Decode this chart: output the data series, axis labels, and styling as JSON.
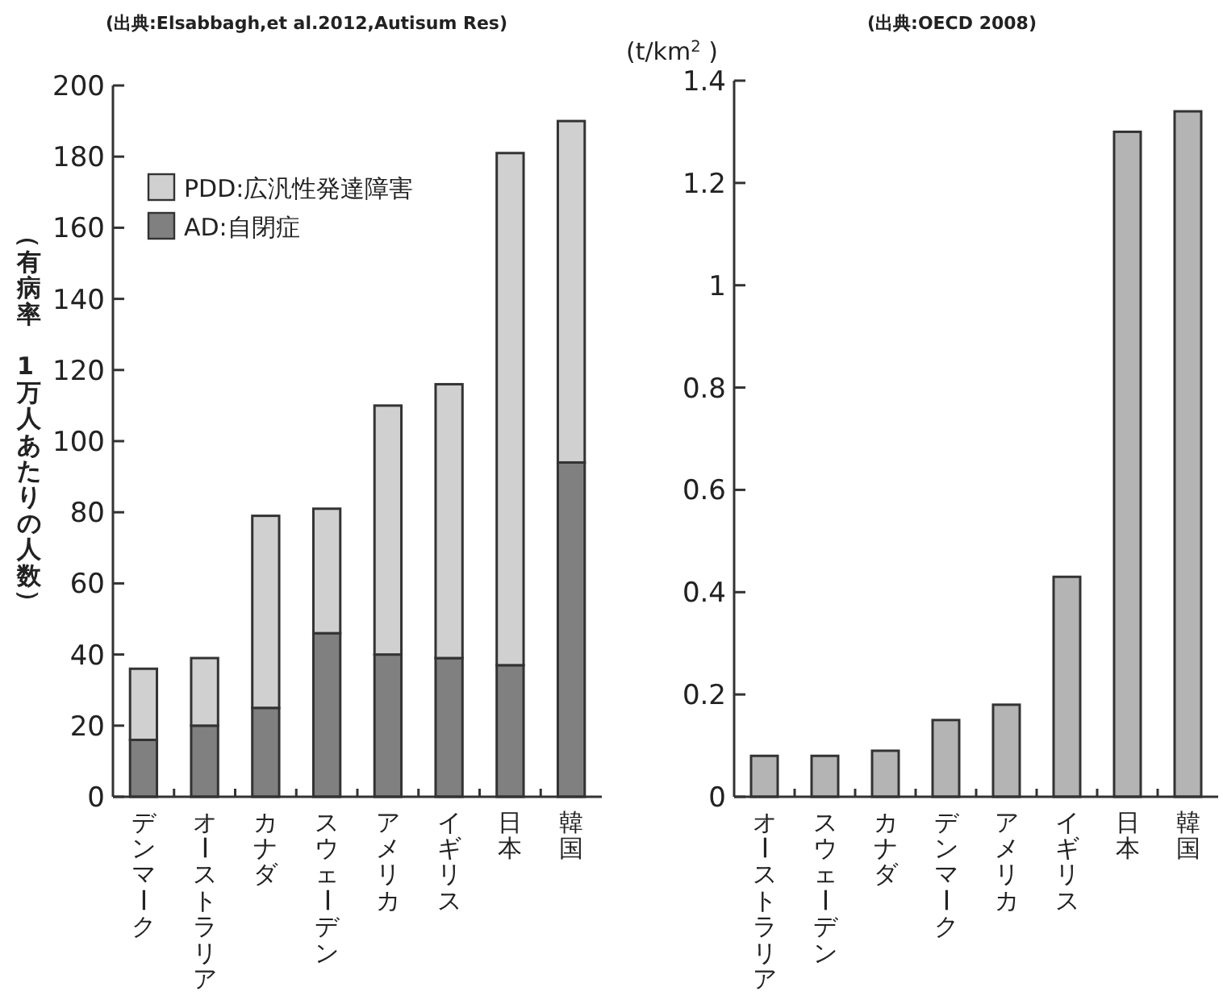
{
  "chart_data": [
    {
      "type": "bar",
      "title": "(出典:Elsabbagh,et al.2012,Autisum Res)",
      "ylabel": "（有病率　1万人あたりの人数）",
      "categories": [
        "デンマーク",
        "オーストラリア",
        "カナダ",
        "スウェーデン",
        "アメリカ",
        "イギリス",
        "日本",
        "韓国"
      ],
      "stacked": true,
      "legend": "top left",
      "ylim": [
        0,
        200
      ],
      "yticks": [
        0,
        20,
        40,
        60,
        80,
        100,
        120,
        140,
        160,
        180,
        200
      ],
      "series": [
        {
          "name": "AD:自閉症",
          "color": "#808080",
          "values": [
            16,
            20,
            25,
            46,
            40,
            39,
            37,
            94
          ]
        },
        {
          "name": "PDD:広汎性発達障害",
          "color": "#d0d0d0",
          "values": [
            20,
            19,
            54,
            35,
            70,
            77,
            144,
            96
          ]
        }
      ]
    },
    {
      "type": "bar",
      "title": "(出典:OECD 2008)",
      "ylabel": "(t/km$^{2}$ )",
      "categories": [
        "オーストラリア",
        "スウェーデン",
        "カナダ",
        "デンマーク",
        "アメリカ",
        "イギリス",
        "日本",
        "韓国"
      ],
      "ylim": [
        0,
        1.4
      ],
      "yticks": [
        0,
        0.2,
        0.4,
        0.6,
        0.8,
        1,
        1.2,
        1.4
      ],
      "color": "#b4b4b4",
      "values": [
        0.08,
        0.08,
        0.09,
        0.15,
        0.18,
        0.43,
        1.3,
        1.34
      ]
    }
  ]
}
